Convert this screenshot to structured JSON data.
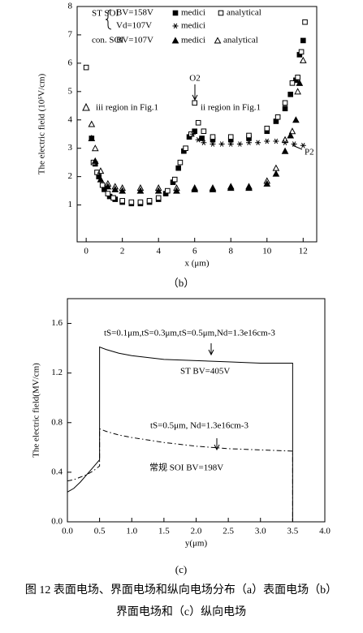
{
  "chart_data": [
    {
      "type": "scatter",
      "xlabel": "x (μm)",
      "ylabel": "The electric field (10⁵V/cm)",
      "xlim": [
        -0.5,
        12.75
      ],
      "ylim": [
        -0.3,
        8
      ],
      "xticks": [
        0,
        2,
        4,
        6,
        8,
        10,
        12
      ],
      "yticks": [
        1,
        2,
        3,
        4,
        5,
        6,
        7,
        8
      ],
      "legend_labels": [
        "ST  SOI",
        "BV=158V",
        "Vd=107V",
        "con. SOI",
        "BV=107V"
      ],
      "annotations": [
        "iii  region in Fig.1",
        "ii region in Fig.1",
        "O2",
        "P2"
      ],
      "series": [
        {
          "name": "medici",
          "color": "#000",
          "marker": "filled-square",
          "x": [
            0.3,
            0.5,
            0.7,
            1.0,
            1.3,
            1.6,
            2.0,
            2.5,
            3.0,
            3.5,
            4.0,
            4.4,
            4.8,
            5.1,
            5.4,
            5.7,
            6.0,
            6.4,
            7.0,
            8.0,
            9.0,
            10.0,
            10.5,
            11.0,
            11.3,
            11.6,
            11.8,
            12.0
          ],
          "values": [
            3.35,
            2.45,
            2.0,
            1.55,
            1.3,
            1.2,
            1.1,
            1.05,
            1.05,
            1.1,
            1.2,
            1.4,
            1.8,
            2.3,
            2.9,
            3.4,
            3.6,
            3.35,
            3.3,
            3.3,
            3.35,
            3.6,
            3.95,
            4.4,
            4.9,
            5.4,
            6.3,
            6.8
          ]
        },
        {
          "name": "analytical",
          "color": "#000",
          "marker": "open-square",
          "x": [
            0.0,
            0.4,
            0.6,
            0.9,
            1.2,
            1.5,
            2.0,
            2.5,
            3.0,
            3.5,
            4.0,
            4.5,
            4.9,
            5.2,
            5.5,
            5.8,
            6.0,
            6.2,
            6.5,
            7.0,
            8.0,
            9.0,
            10.0,
            10.6,
            11.0,
            11.4,
            11.7,
            11.9,
            12.1
          ],
          "values": [
            5.85,
            2.5,
            2.15,
            1.7,
            1.4,
            1.25,
            1.15,
            1.1,
            1.1,
            1.15,
            1.25,
            1.5,
            1.9,
            2.5,
            3.0,
            3.5,
            4.6,
            3.9,
            3.6,
            3.4,
            3.4,
            3.45,
            3.7,
            4.1,
            4.6,
            5.3,
            5.5,
            6.4,
            7.45
          ]
        },
        {
          "name": "medici",
          "color": "#000",
          "marker": "star",
          "x": [
            5.9,
            6.2,
            6.5,
            7.0,
            7.5,
            8.0,
            8.5,
            9.0,
            9.5,
            10.0,
            10.5,
            11.0,
            11.5,
            12.0
          ],
          "values": [
            3.5,
            3.3,
            3.2,
            3.15,
            3.15,
            3.15,
            3.15,
            3.2,
            3.2,
            3.25,
            3.25,
            3.2,
            3.15,
            3.1
          ]
        },
        {
          "name": "medici",
          "color": "#000",
          "marker": "filled-triangle",
          "x": [
            0.3,
            0.5,
            0.8,
            1.2,
            1.6,
            2.0,
            3.0,
            4.0,
            5.0,
            6.0,
            7.0,
            8.0,
            9.0,
            10.0,
            10.5,
            11.0,
            11.3,
            11.6,
            11.8
          ],
          "values": [
            3.35,
            2.55,
            1.9,
            1.65,
            1.55,
            1.5,
            1.5,
            1.5,
            1.5,
            1.55,
            1.55,
            1.6,
            1.6,
            1.75,
            2.1,
            2.9,
            3.45,
            4.0,
            5.3
          ]
        },
        {
          "name": "analytical",
          "color": "#000",
          "marker": "open-triangle",
          "x": [
            0.3,
            0.5,
            0.8,
            1.2,
            1.6,
            2.0,
            3.0,
            4.0,
            5.0,
            6.0,
            7.0,
            8.0,
            9.0,
            10.0,
            10.5,
            11.0,
            11.4,
            11.7,
            12.0
          ],
          "values": [
            3.85,
            3.0,
            2.2,
            1.75,
            1.65,
            1.6,
            1.6,
            1.6,
            1.6,
            1.6,
            1.6,
            1.65,
            1.65,
            1.85,
            2.3,
            3.3,
            3.6,
            5.0,
            6.1
          ]
        }
      ]
    },
    {
      "type": "line",
      "xlabel": "y(μm)",
      "ylabel": "The electric field(MV/cm)",
      "xlim": [
        0,
        4
      ],
      "ylim": [
        0,
        1.8
      ],
      "xticks": [
        {
          "value": 0,
          "label": "0.0"
        },
        0.5,
        {
          "value": 1,
          "label": "1.0"
        },
        1.5,
        {
          "value": 2,
          "label": "2.0"
        },
        2.5,
        {
          "value": 3,
          "label": "3.0"
        },
        3.5,
        {
          "value": 4,
          "label": "4.0"
        }
      ],
      "yticks": [
        {
          "value": 0,
          "label": "0.0"
        },
        0.4,
        0.8,
        1.2,
        1.6
      ],
      "annotations": [
        "tS=0.1μm,tS=0.3μm,tS=0.5μm,Nd=1.3e16cm-3",
        "ST   BV=405V",
        "tS=0.5μm, Nd=1.3e16cm-3",
        "常规 SOI  BV=198V"
      ],
      "series": [
        {
          "color": "#000",
          "linestyle": "solid",
          "x": [
            0,
            0.1,
            0.2,
            0.3,
            0.4,
            0.5,
            0.5,
            0.6,
            0.8,
            1.0,
            1.5,
            2.0,
            2.5,
            3.0,
            3.5,
            3.5,
            4.0
          ],
          "values": [
            0.24,
            0.27,
            0.32,
            0.38,
            0.44,
            0.5,
            1.41,
            1.39,
            1.36,
            1.34,
            1.31,
            1.3,
            1.29,
            1.28,
            1.28,
            0,
            0
          ]
        },
        {
          "color": "#000",
          "linestyle": "dashdot",
          "x": [
            0,
            0.1,
            0.2,
            0.3,
            0.4,
            0.5,
            0.5,
            0.6,
            0.8,
            1.0,
            1.5,
            2.0,
            2.5,
            3.0,
            3.5,
            3.5,
            4.0
          ],
          "values": [
            0.33,
            0.34,
            0.36,
            0.38,
            0.41,
            0.45,
            0.75,
            0.73,
            0.7,
            0.68,
            0.64,
            0.61,
            0.59,
            0.58,
            0.57,
            0,
            0
          ]
        }
      ]
    }
  ],
  "panel_labels": [
    "（b）",
    "(c)"
  ],
  "caption": [
    "图 12 表面电场、界面电场和纵向电场分布（a）表面电场（b）",
    "界面电场和（c）纵向电场"
  ]
}
